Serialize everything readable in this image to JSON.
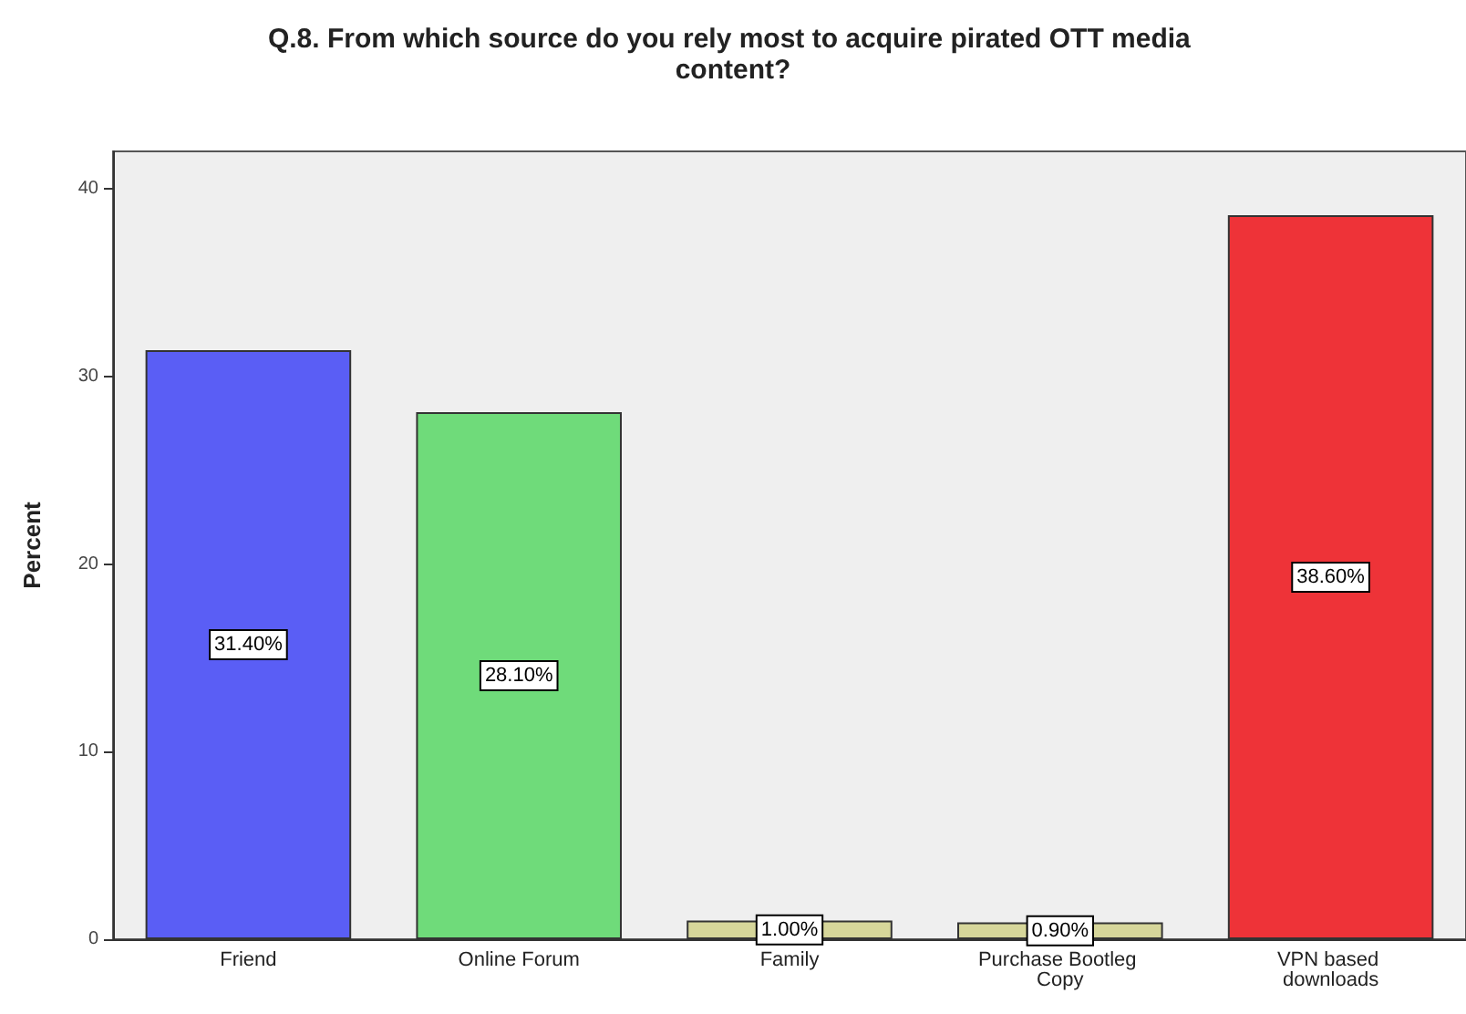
{
  "chart_data": {
    "type": "bar",
    "title": "Q.8. From which source do you rely most to acquire pirated OTT media content?",
    "ylabel": "Percent",
    "categories": [
      "Friend",
      "Online Forum",
      "Family",
      "Purchase Bootleg Copy",
      "VPN based downloads"
    ],
    "values": [
      31.4,
      28.1,
      1.0,
      0.9,
      38.6
    ],
    "colors": [
      "#5a5ef5",
      "#6fdb7a",
      "#d6d69a",
      "#d6d69a",
      "#ee3338"
    ],
    "value_labels": [
      "31.40%",
      "28.10%",
      "1.00%",
      "0.90%",
      "38.60%"
    ],
    "ylim": [
      0,
      42
    ],
    "yticks": [
      0,
      10,
      20,
      30,
      40
    ]
  }
}
